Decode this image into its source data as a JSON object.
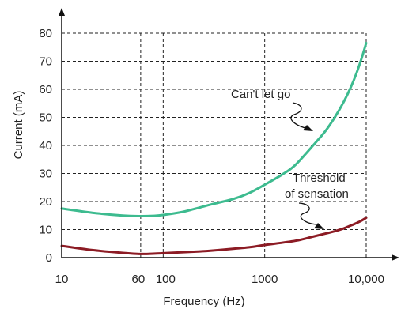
{
  "chart_data": {
    "type": "line",
    "xscale": "log",
    "xlim": [
      10,
      10000
    ],
    "ylim": [
      0,
      80
    ],
    "xlabel": "Frequency (Hz)",
    "ylabel": "Current (mA)",
    "xticks": [
      {
        "value": 10,
        "label": "10"
      },
      {
        "value": 60,
        "label": "60"
      },
      {
        "value": 100,
        "label": "100"
      },
      {
        "value": 1000,
        "label": "1000"
      },
      {
        "value": 10000,
        "label": "10,000"
      }
    ],
    "yticks": [
      0,
      10,
      20,
      30,
      40,
      50,
      60,
      70,
      80
    ],
    "grid": true,
    "series": [
      {
        "name": "Can't let go",
        "color": "#3dbb8f",
        "x": [
          10,
          20,
          40,
          60,
          80,
          100,
          150,
          200,
          300,
          500,
          700,
          1000,
          1500,
          2000,
          3000,
          4000,
          5000,
          6000,
          7000,
          8000,
          9000,
          10000
        ],
        "y": [
          17.5,
          16.0,
          15.0,
          14.8,
          14.9,
          15.2,
          16.2,
          17.3,
          19.0,
          21.0,
          23.0,
          26.0,
          29.7,
          33.0,
          40.0,
          45.3,
          50.5,
          55.5,
          60.5,
          65.6,
          71.0,
          76.5
        ]
      },
      {
        "name": "Threshold of sensation",
        "color": "#8c1b24",
        "x": [
          10,
          20,
          40,
          60,
          80,
          100,
          200,
          300,
          500,
          700,
          1000,
          2000,
          3000,
          4000,
          5000,
          6000,
          7000,
          8000,
          9000,
          10000
        ],
        "y": [
          4.2,
          2.7,
          1.7,
          1.3,
          1.4,
          1.6,
          2.1,
          2.5,
          3.2,
          3.7,
          4.5,
          6.0,
          7.5,
          8.6,
          9.5,
          10.4,
          11.4,
          12.3,
          13.2,
          14.2
        ]
      }
    ],
    "annotations": [
      {
        "text": "Can't let go"
      },
      {
        "text": "Threshold"
      },
      {
        "text": "of sensation"
      }
    ]
  }
}
